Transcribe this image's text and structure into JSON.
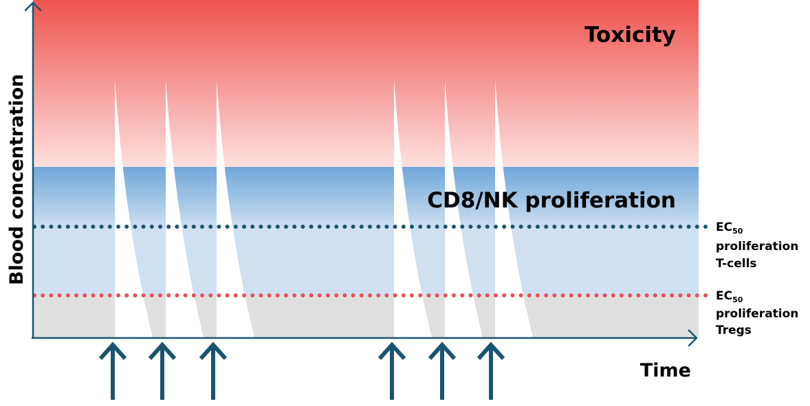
{
  "diagram": {
    "y_axis_label": "Blood concentration",
    "x_axis_label": "Time",
    "zones": {
      "toxicity": {
        "label": "Toxicity",
        "top_color": "#ef5350",
        "bottom_color": "#fde0de"
      },
      "proliferation": {
        "label": "CD8/NK proliferation",
        "top_color": "#6fa7d9",
        "bottom_color": "#cfe0f1"
      },
      "baseline": {
        "color": "#e0e0e0"
      }
    },
    "thresholds": [
      {
        "id": "tcells",
        "line_color": "#1b5470",
        "label_main": "EC",
        "label_sub": "50",
        "label_line2": "proliferation",
        "label_line3": "T-cells"
      },
      {
        "id": "tregs",
        "line_color": "#e8505b",
        "label_main": "EC",
        "label_sub": "50",
        "label_line2": "proliferation",
        "label_line3": "Tregs"
      }
    ],
    "dose_arrow_color": "#1b5470",
    "dose_groups": [
      {
        "doses": 3
      },
      {
        "doses": 3
      }
    ]
  }
}
